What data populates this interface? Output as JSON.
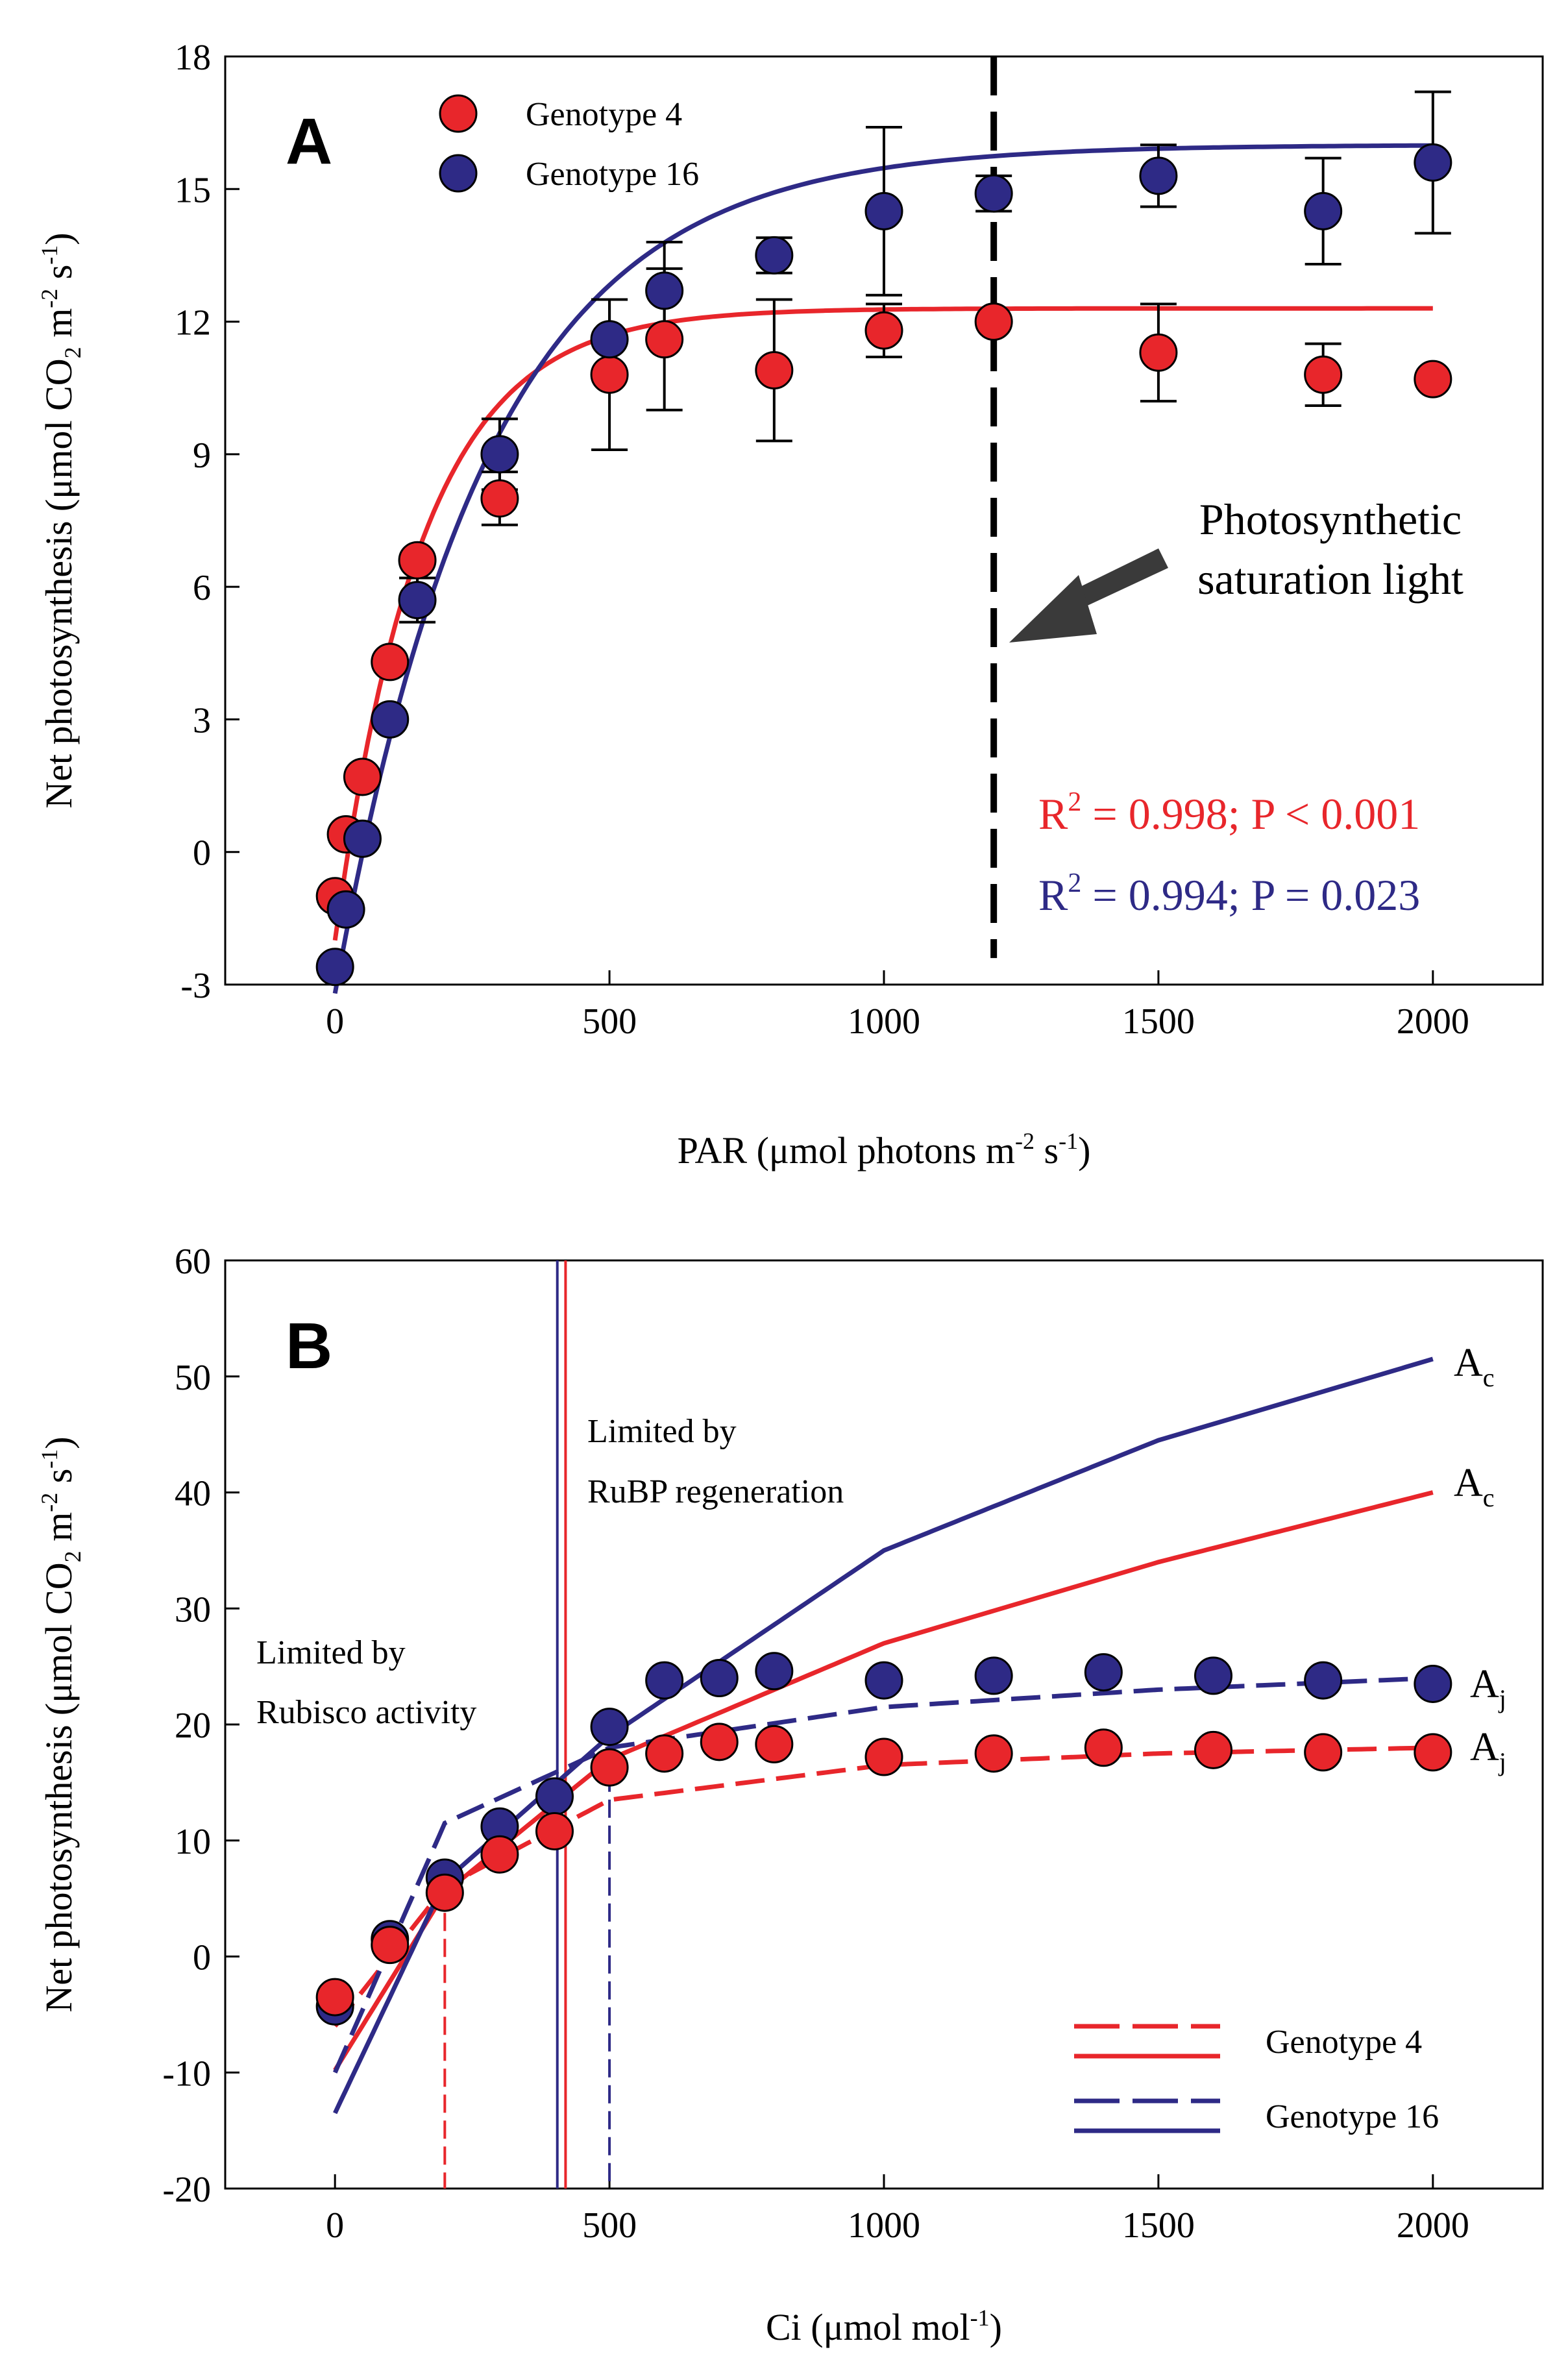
{
  "chart_data": [
    {
      "type": "scatter",
      "panel_label": "A",
      "xlabel_main": "PAR (μmol photons m",
      "xlabel_sup": "-2",
      "xlabel_mid": " s",
      "xlabel_sup2": "-1",
      "xlabel_end": ")",
      "ylabel_main": "Net photosynthesis (μmol CO",
      "ylabel_sub": "2",
      "ylabel_mid": " m",
      "ylabel_sup": "-2",
      "ylabel_mid2": " s",
      "ylabel_sup2": "-1",
      "ylabel_end": ")",
      "xlim": [
        -200,
        2200
      ],
      "ylim": [
        -3,
        18
      ],
      "xticks": [
        0,
        500,
        1000,
        1500,
        2000
      ],
      "xtick_labels": [
        "0",
        "500",
        "1000",
        "1500",
        "2000"
      ],
      "yticks": [
        -3,
        0,
        3,
        6,
        9,
        12,
        15,
        18
      ],
      "ytick_labels": [
        "-3",
        "0",
        "3",
        "6",
        "9",
        "12",
        "15",
        "18"
      ],
      "legend": [
        "Genotype 4",
        "Genotype 16"
      ],
      "series": [
        {
          "name": "Genotype 4",
          "color": "#e8262b",
          "x": [
            0,
            20,
            50,
            100,
            150,
            300,
            500,
            600,
            800,
            1000,
            1200,
            1500,
            1800,
            2000
          ],
          "y": [
            -1.0,
            0.4,
            1.7,
            4.3,
            6.6,
            8.0,
            10.8,
            11.6,
            10.9,
            11.8,
            12.0,
            11.3,
            10.8,
            10.7
          ],
          "err": [
            0,
            0,
            0,
            0,
            0,
            0.6,
            1.7,
            1.6,
            1.6,
            0.6,
            0,
            1.1,
            0.7,
            0
          ],
          "fit": {
            "pmax": 14.3,
            "k": 0.0063,
            "rd": 2.0
          }
        },
        {
          "name": "Genotype 16",
          "color": "#2e2a86",
          "x": [
            0,
            20,
            50,
            100,
            150,
            300,
            500,
            600,
            800,
            1000,
            1200,
            1500,
            1800,
            2000
          ],
          "y": [
            -2.6,
            -1.3,
            0.3,
            3.0,
            5.7,
            9.0,
            11.6,
            12.7,
            13.5,
            14.5,
            14.9,
            15.3,
            14.5,
            15.6
          ],
          "err": [
            0,
            0,
            0,
            0,
            0.5,
            0.8,
            0.9,
            1.1,
            0.4,
            1.9,
            0.4,
            0.7,
            1.2,
            1.6
          ],
          "fit": {
            "pmax": 19.2,
            "k": 0.0036,
            "rd": 3.2
          }
        }
      ],
      "saturation_x": 1200,
      "annotation_line1": "Photosynthetic",
      "annotation_line2": "saturation light",
      "stats": [
        {
          "pre": "R",
          "sup": "2",
          "post": " = 0.998; P < 0.001",
          "color": "#e8262b"
        },
        {
          "pre": "R",
          "sup": "2",
          "post": " = 0.994; P = 0.023",
          "color": "#2e2a86"
        }
      ]
    },
    {
      "type": "scatter",
      "panel_label": "B",
      "xlabel_main": "Ci (μmol mol",
      "xlabel_sup": "-1",
      "xlabel_end": ")",
      "ylabel_main": "Net photosynthesis (μmol CO",
      "ylabel_sub": "2",
      "ylabel_mid": " m",
      "ylabel_sup": "-2",
      "ylabel_mid2": " s",
      "ylabel_sup2": "-1",
      "ylabel_end": ")",
      "xlim": [
        -200,
        2200
      ],
      "ylim": [
        -20,
        60
      ],
      "xticks": [
        0,
        500,
        1000,
        1500,
        2000
      ],
      "xtick_labels": [
        "0",
        "500",
        "1000",
        "1500",
        "2000"
      ],
      "yticks": [
        -20,
        -10,
        0,
        10,
        20,
        30,
        40,
        50,
        60
      ],
      "ytick_labels": [
        "-20",
        "-10",
        "0",
        "10",
        "20",
        "30",
        "40",
        "50",
        "60"
      ],
      "legend": [
        "Genotype 4",
        "Genotype 16"
      ],
      "series": [
        {
          "name": "Genotype 4",
          "color": "#e8262b",
          "x": [
            0,
            100,
            200,
            300,
            400,
            500,
            600,
            700,
            800,
            1000,
            1200,
            1400,
            1600,
            1800,
            2000
          ],
          "y": [
            -3.5,
            1.0,
            5.5,
            8.8,
            10.8,
            16.3,
            17.5,
            18.5,
            18.3,
            17.2,
            17.5,
            18.0,
            17.8,
            17.6,
            17.6
          ],
          "ac_curve": {
            "x": [
              0,
              200,
              500,
              1000,
              1500,
              2000
            ],
            "y": [
              -9.8,
              5.5,
              17.0,
              27.0,
              34.0,
              40.0
            ]
          },
          "aj_curve": {
            "x": [
              0,
              200,
              500,
              1000,
              1500,
              2000
            ],
            "y": [
              -6.0,
              6.0,
              13.5,
              16.5,
              17.5,
              18.0
            ]
          },
          "transition_ci": 200,
          "limit_ci": 420
        },
        {
          "name": "Genotype 16",
          "color": "#2e2a86",
          "x": [
            0,
            100,
            200,
            300,
            400,
            500,
            600,
            700,
            800,
            1000,
            1200,
            1400,
            1600,
            1800,
            2000
          ],
          "y": [
            -4.3,
            1.5,
            6.8,
            11.2,
            13.8,
            19.8,
            23.8,
            24.0,
            24.6,
            23.8,
            24.2,
            24.5,
            24.2,
            23.8,
            23.5
          ],
          "ac_curve": {
            "x": [
              0,
              200,
              500,
              1000,
              1500,
              2000
            ],
            "y": [
              -13.5,
              6.5,
              19.0,
              35.0,
              44.5,
              51.5
            ]
          },
          "aj_curve": {
            "x": [
              0,
              200,
              500,
              1000,
              1500,
              2000
            ],
            "y": [
              -10.0,
              11.5,
              18.0,
              21.5,
              23.0,
              24.0
            ]
          },
          "transition_ci": 500,
          "limit_ci": 405
        }
      ],
      "curve_labels": [
        {
          "base": "A",
          "sub": "c"
        },
        {
          "base": "A",
          "sub": "c"
        },
        {
          "base": "A",
          "sub": "j"
        },
        {
          "base": "A",
          "sub": "j"
        }
      ],
      "region_left_line1": "Limited by",
      "region_left_line2": "Rubisco activity",
      "region_right_line1": "Limited by",
      "region_right_line2": "RuBP regeneration"
    }
  ]
}
